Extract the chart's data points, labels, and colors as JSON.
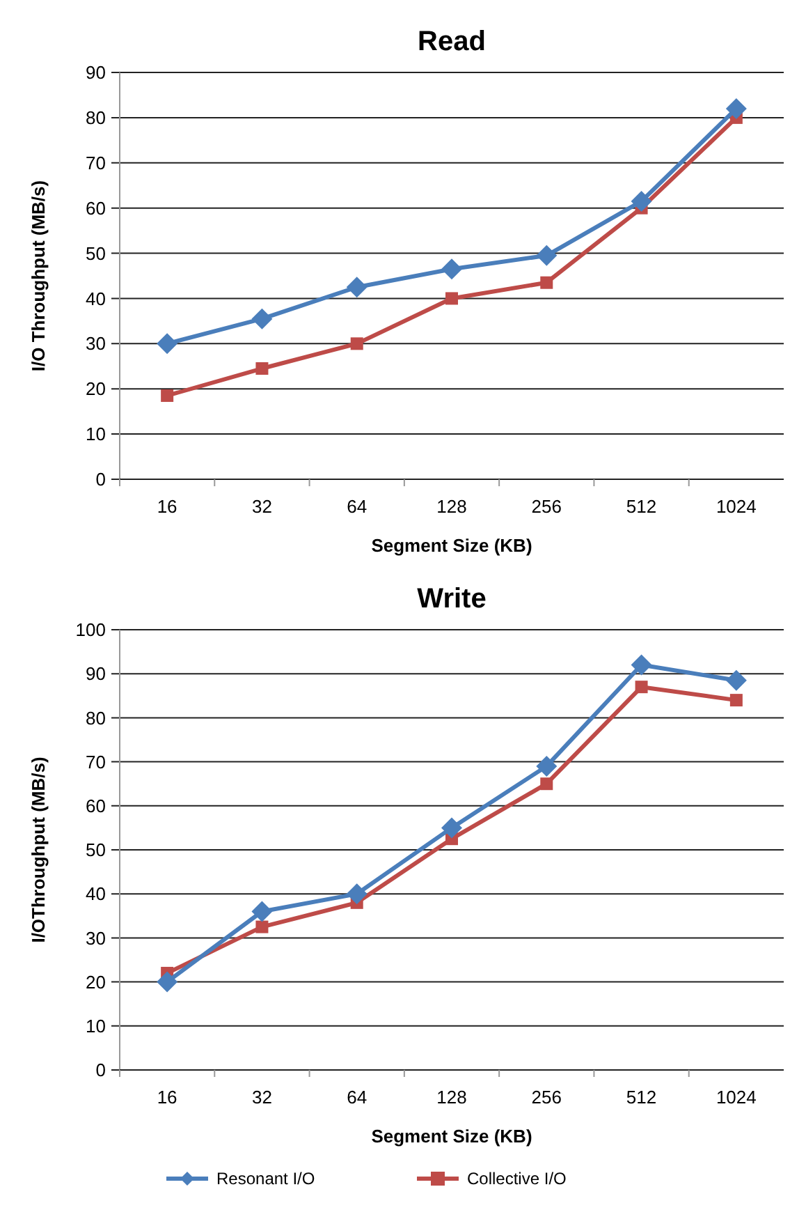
{
  "chart_data": [
    {
      "type": "line",
      "title": "Read",
      "xlabel": "Segment Size (KB)",
      "ylabel": "I/O Throughput (MB/s)",
      "categories": [
        "16",
        "32",
        "64",
        "128",
        "256",
        "512",
        "1024"
      ],
      "ylim": [
        0,
        90
      ],
      "yticks": [
        0,
        10,
        20,
        30,
        40,
        50,
        60,
        70,
        80,
        90
      ],
      "grid": "y",
      "series": [
        {
          "color": "#4a7ebb",
          "marker": "diamond",
          "values": [
            30,
            35.5,
            42.5,
            46.5,
            49.5,
            61.5,
            82
          ]
        },
        {
          "color": "#be4b48",
          "marker": "square",
          "values": [
            18.5,
            24.5,
            30,
            40,
            43.5,
            60,
            80
          ]
        }
      ]
    },
    {
      "type": "line",
      "title": "Write",
      "xlabel": "Segment Size (KB)",
      "ylabel": "I/OThroughput (MB/s)",
      "categories": [
        "16",
        "32",
        "64",
        "128",
        "256",
        "512",
        "1024"
      ],
      "ylim": [
        0,
        100
      ],
      "yticks": [
        0,
        10,
        20,
        30,
        40,
        50,
        60,
        70,
        80,
        90,
        100
      ],
      "grid": "y",
      "legend": "bottom",
      "series": [
        {
          "name": "Resonant I/O",
          "color": "#4a7ebb",
          "marker": "diamond",
          "values": [
            20,
            36,
            40,
            55,
            69,
            92,
            88.5
          ]
        },
        {
          "name": "Collective I/O",
          "color": "#be4b48",
          "marker": "square",
          "values": [
            22,
            32.5,
            38,
            52.5,
            65,
            87,
            84
          ]
        }
      ]
    }
  ]
}
